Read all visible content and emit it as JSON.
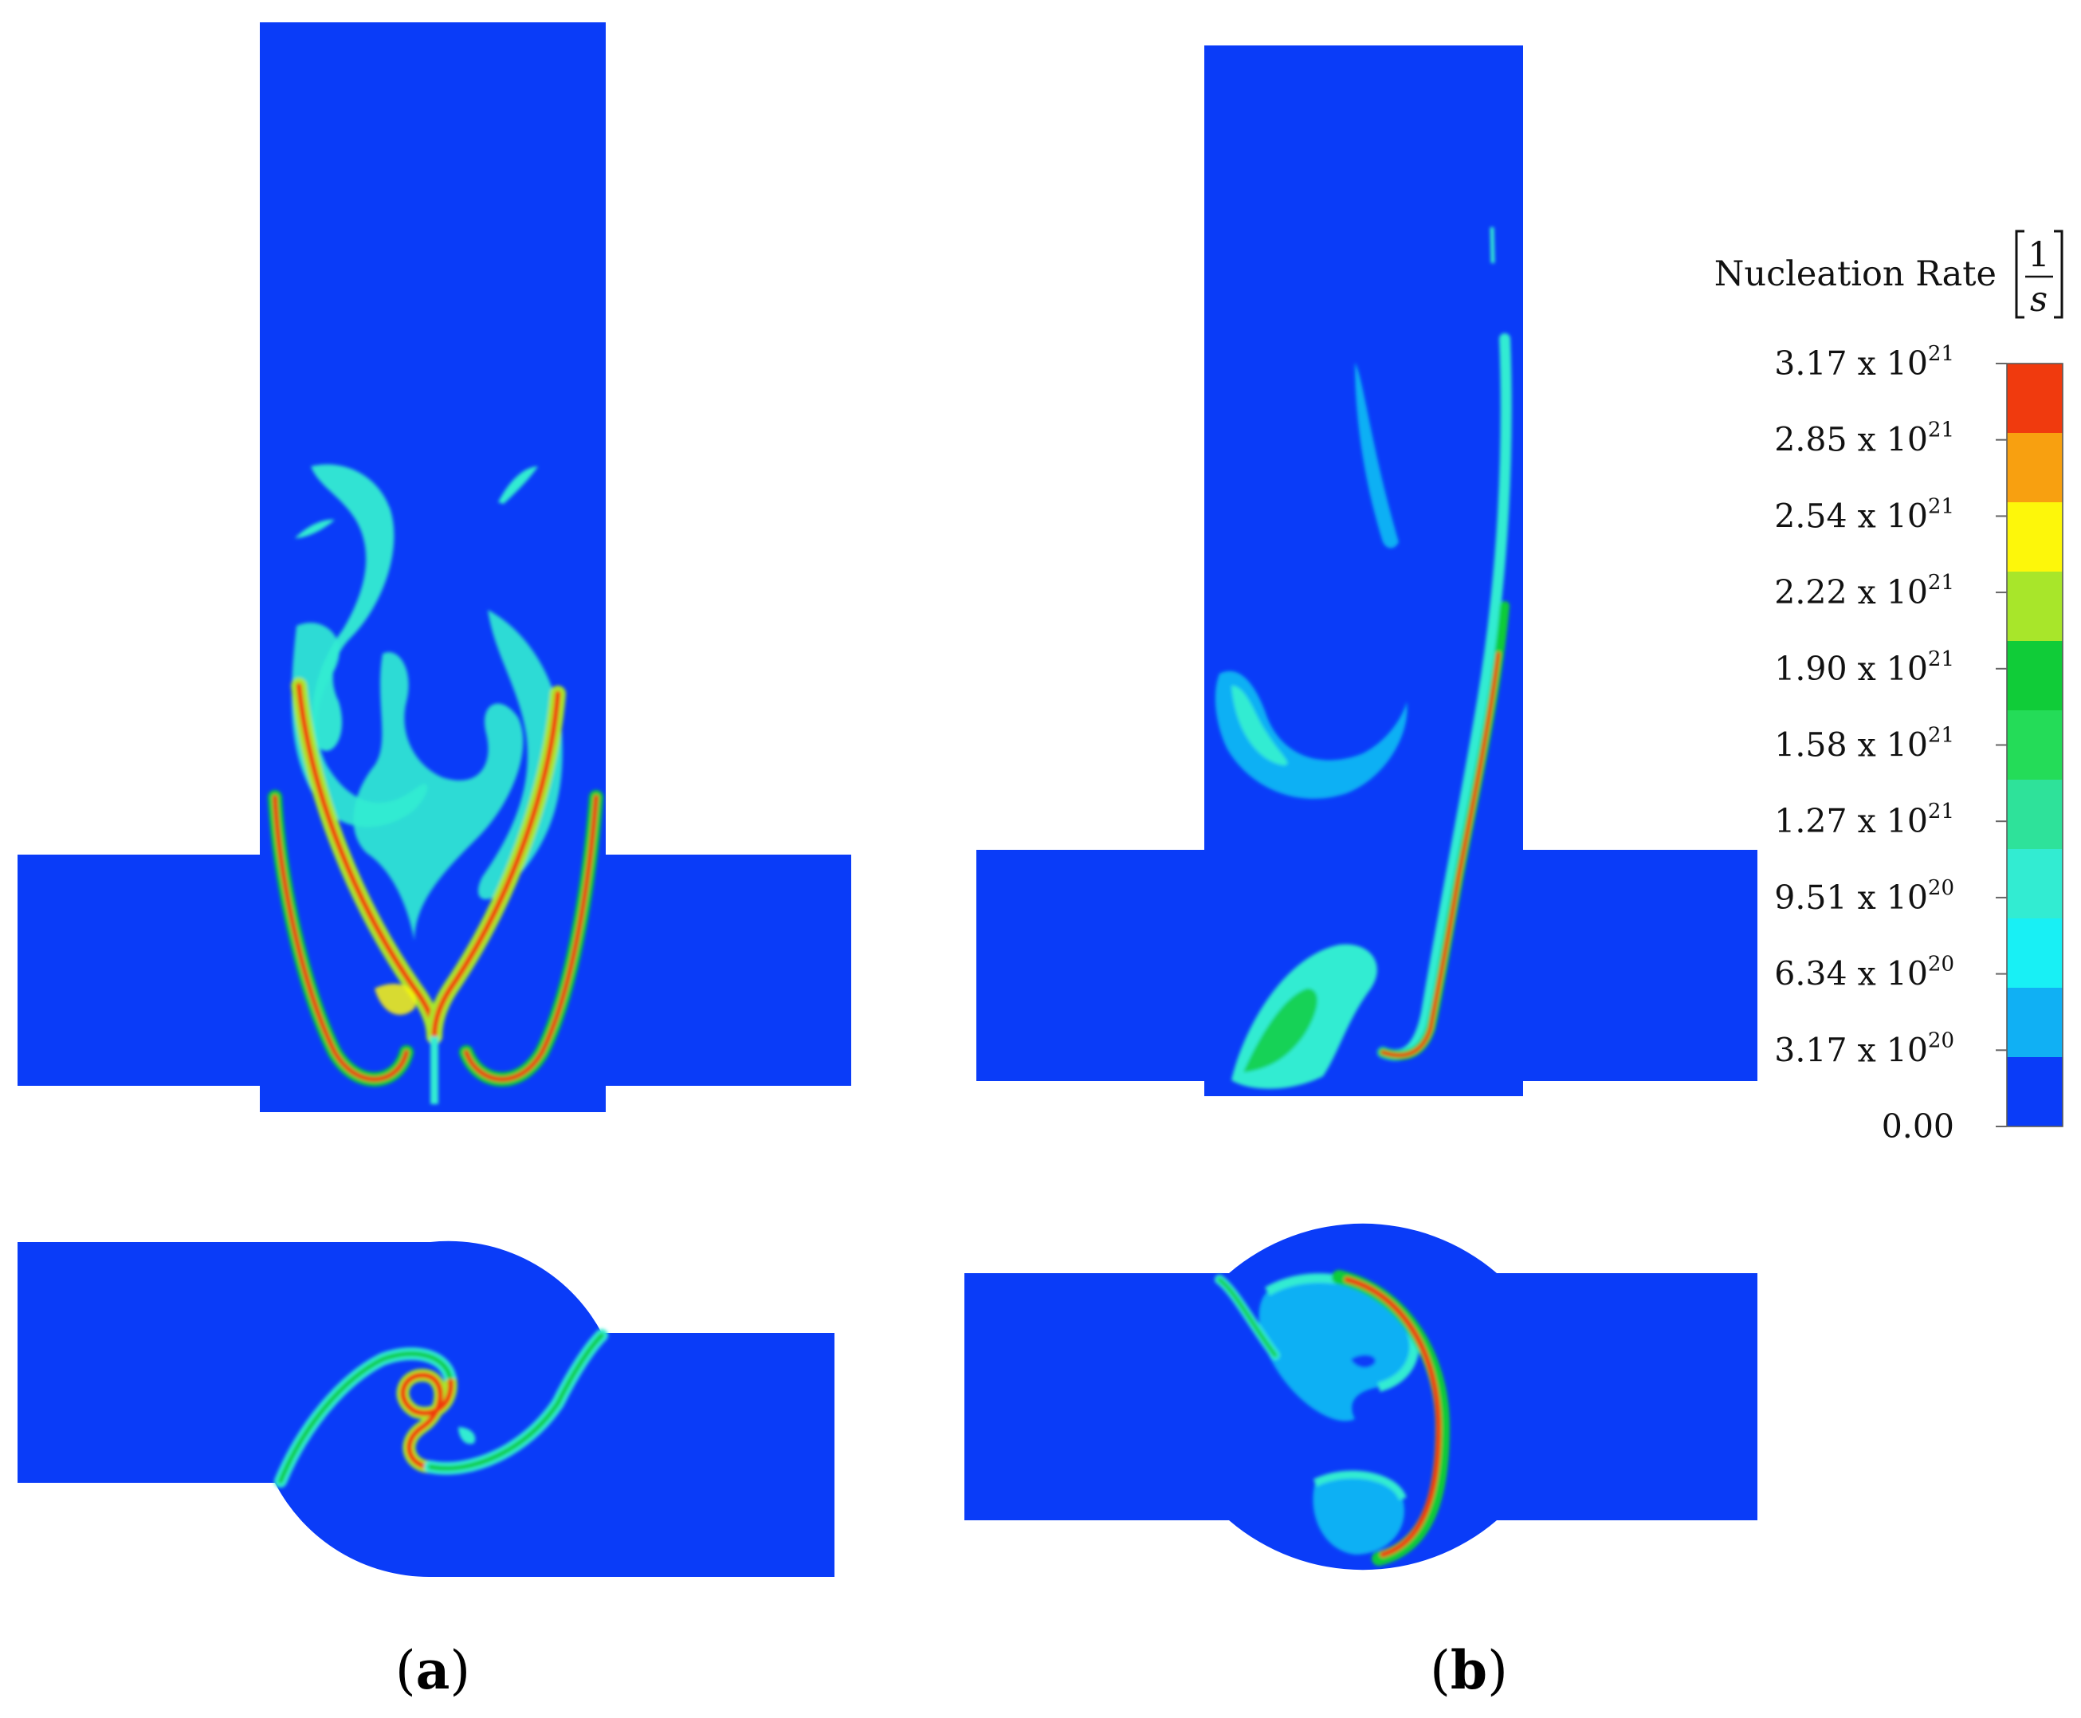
{
  "colorbar": {
    "title": "Nucleation Rate",
    "unit_numerator": "1",
    "unit_denominator": "s",
    "ticks": [
      {
        "mantissa": "3.17",
        "times": "x",
        "base": "10",
        "exp": "21"
      },
      {
        "mantissa": "2.85",
        "times": "x",
        "base": "10",
        "exp": "21"
      },
      {
        "mantissa": "2.54",
        "times": "x",
        "base": "10",
        "exp": "21"
      },
      {
        "mantissa": "2.22",
        "times": "x",
        "base": "10",
        "exp": "21"
      },
      {
        "mantissa": "1.90",
        "times": "x",
        "base": "10",
        "exp": "21"
      },
      {
        "mantissa": "1.58",
        "times": "x",
        "base": "10",
        "exp": "21"
      },
      {
        "mantissa": "1.27",
        "times": "x",
        "base": "10",
        "exp": "21"
      },
      {
        "mantissa": "9.51",
        "times": "x",
        "base": "10",
        "exp": "20"
      },
      {
        "mantissa": "6.34",
        "times": "x",
        "base": "10",
        "exp": "20"
      },
      {
        "mantissa": "3.17",
        "times": "x",
        "base": "10",
        "exp": "20"
      },
      {
        "mantissa": "0.00",
        "times": "",
        "base": "",
        "exp": ""
      }
    ],
    "colors": [
      "#f03a0e",
      "#f8a010",
      "#fdf70a",
      "#a8e62a",
      "#10cc38",
      "#24dc58",
      "#2ee29a",
      "#32ecd2",
      "#18f0f5",
      "#10b0f4",
      "#0a3cf8"
    ]
  },
  "colors": {
    "field_background": "#0a3cf8"
  },
  "panels": [
    {
      "label_open": "(",
      "label_letter": "a",
      "label_close": ")"
    },
    {
      "label_open": "(",
      "label_letter": "b",
      "label_close": ")"
    }
  ]
}
